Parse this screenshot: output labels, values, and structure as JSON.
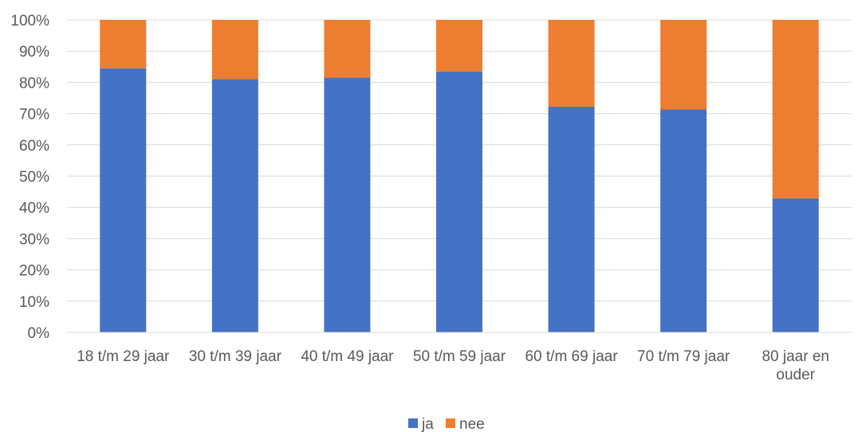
{
  "chart_data": {
    "type": "bar",
    "stacked": true,
    "percent": true,
    "categories": [
      [
        "18 t/m 29 jaar"
      ],
      [
        "30 t/m 39 jaar"
      ],
      [
        "40 t/m 49 jaar"
      ],
      [
        "50 t/m 59 jaar"
      ],
      [
        "60 t/m 69 jaar"
      ],
      [
        "70 t/m 79 jaar"
      ],
      [
        "80 jaar en",
        "ouder"
      ]
    ],
    "series": [
      {
        "name": "ja",
        "color": "#4472C4",
        "values": [
          84.5,
          81,
          81.5,
          83.5,
          72.2,
          71.3,
          42.9
        ]
      },
      {
        "name": "nee",
        "color": "#ED7D31",
        "values": [
          15.5,
          19,
          18.5,
          16.5,
          27.8,
          28.7,
          57.1
        ]
      }
    ],
    "ylim": [
      0,
      100
    ],
    "yticks": [
      "0%",
      "10%",
      "20%",
      "30%",
      "40%",
      "50%",
      "60%",
      "70%",
      "80%",
      "90%",
      "100%"
    ],
    "grid": true,
    "legend_position": "bottom"
  }
}
